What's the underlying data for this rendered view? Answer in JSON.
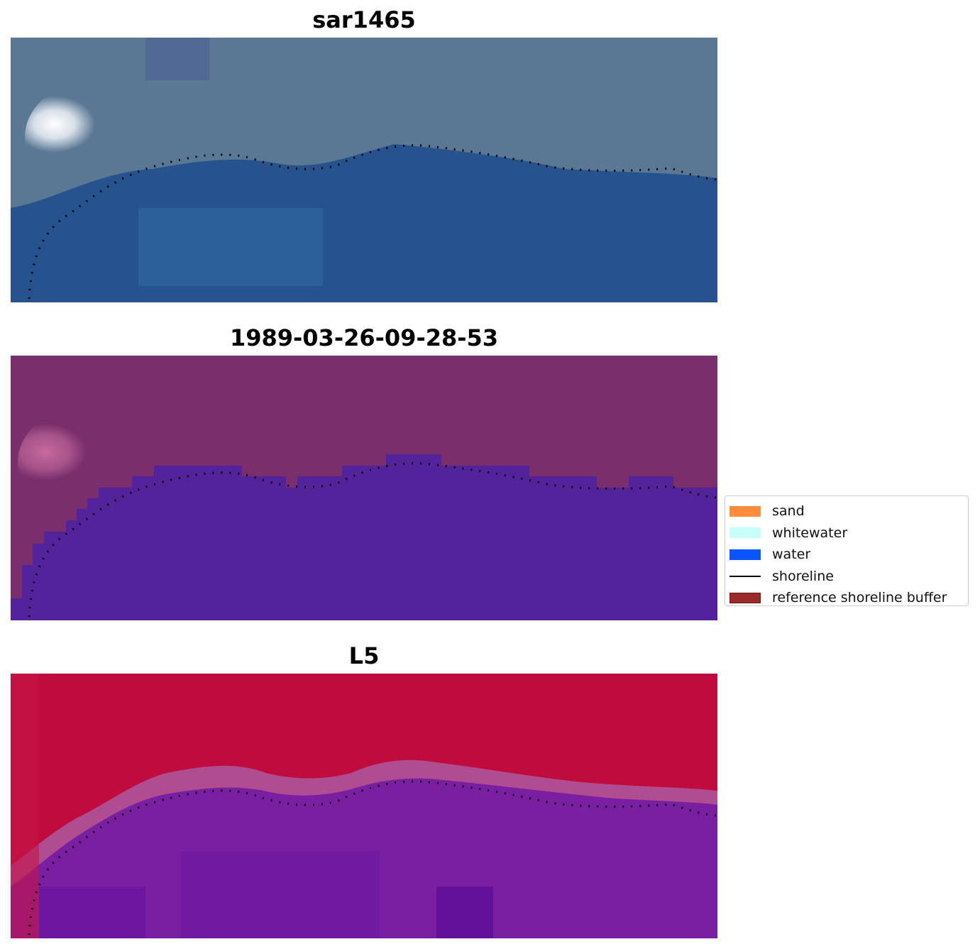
{
  "panels": [
    {
      "title": "sar1465",
      "colors": {
        "upper": "#5a7894",
        "glare": "#e8ecf2",
        "lower": "#26528d"
      }
    },
    {
      "title": "1989-03-26-09-28-53",
      "colors": {
        "upper": "#7a2f6c",
        "glare": "#c0619a",
        "lower": "#52239b"
      }
    },
    {
      "title": "L5",
      "colors": {
        "upper": "#bf0b3e",
        "glare": "#c84a7a",
        "lower": "#6a14a0",
        "band": "#b04c90"
      }
    }
  ],
  "legend": {
    "items": [
      {
        "label": "sand",
        "color": "#ff8c3c",
        "kind": "patch"
      },
      {
        "label": "whitewater",
        "color": "#c8fff8",
        "kind": "patch"
      },
      {
        "label": "water",
        "color": "#0b55ff",
        "kind": "patch"
      },
      {
        "label": "shoreline",
        "color": "#000000",
        "kind": "line"
      },
      {
        "label": "reference shoreline buffer",
        "color": "#9b2a2a",
        "kind": "patch"
      }
    ]
  }
}
